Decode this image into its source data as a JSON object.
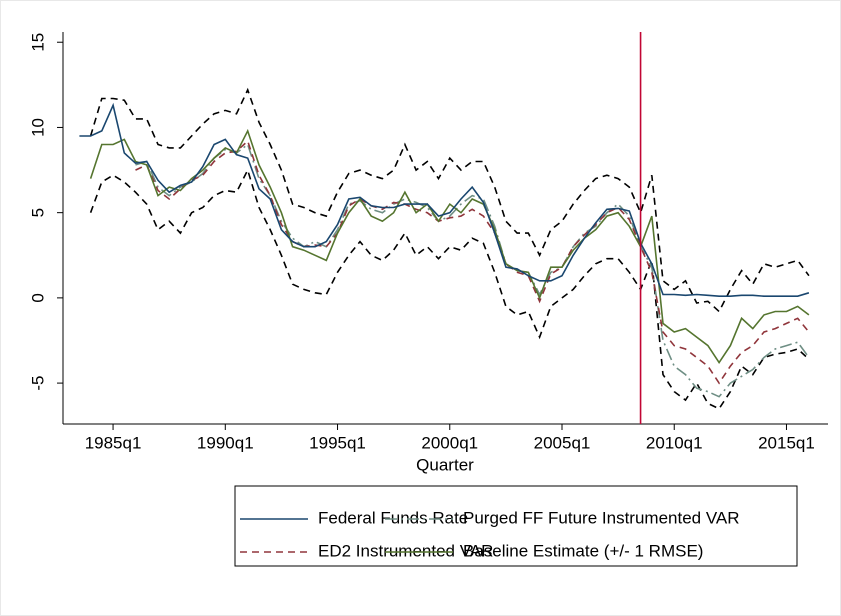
{
  "chart_data": {
    "type": "line",
    "xlabel": "Quarter",
    "x": [
      1983.5,
      1984,
      1984.5,
      1985,
      1985.5,
      1986,
      1986.5,
      1987,
      1987.5,
      1988,
      1988.5,
      1989,
      1989.5,
      1990,
      1990.5,
      1991,
      1991.5,
      1992,
      1992.5,
      1993,
      1993.5,
      1994,
      1994.5,
      1995,
      1995.5,
      1996,
      1996.5,
      1997,
      1997.5,
      1998,
      1998.5,
      1999,
      1999.5,
      2000,
      2000.5,
      2001,
      2001.5,
      2002,
      2002.5,
      2003,
      2003.5,
      2004,
      2004.5,
      2005,
      2005.5,
      2006,
      2006.5,
      2007,
      2007.5,
      2008,
      2008.5,
      2009,
      2009.5,
      2010,
      2010.5,
      2011,
      2011.5,
      2012,
      2012.5,
      2013,
      2013.5,
      2014,
      2014.5,
      2015,
      2015.5,
      2016
    ],
    "xlim": [
      1982.77,
      2016.85
    ],
    "xticks": [
      {
        "value": 1985,
        "label": "1985q1"
      },
      {
        "value": 1990,
        "label": "1990q1"
      },
      {
        "value": 1995,
        "label": "1995q1"
      },
      {
        "value": 2000,
        "label": "2000q1"
      },
      {
        "value": 2005,
        "label": "2005q1"
      },
      {
        "value": 2010,
        "label": "2010q1"
      },
      {
        "value": 2015,
        "label": "2015q1"
      }
    ],
    "ylim": [
      -7.4,
      15.6
    ],
    "yticks": [
      -5,
      0,
      5,
      10,
      15
    ],
    "vline": {
      "x": 2008.5,
      "color": "#c10534"
    },
    "series": [
      {
        "name": "Federal Funds Rate",
        "color": "#1a476f",
        "style": "solid",
        "values": [
          9.5,
          9.5,
          9.8,
          11.3,
          8.5,
          7.9,
          8.0,
          6.9,
          6.2,
          6.6,
          6.8,
          7.7,
          9.0,
          9.3,
          8.4,
          8.2,
          6.4,
          5.8,
          4.0,
          3.3,
          3.0,
          3.0,
          3.3,
          4.3,
          5.8,
          5.9,
          5.4,
          5.3,
          5.3,
          5.5,
          5.5,
          5.5,
          4.8,
          5.0,
          5.8,
          6.5,
          5.6,
          3.8,
          1.8,
          1.7,
          1.3,
          1.0,
          1.0,
          1.3,
          2.5,
          3.5,
          4.4,
          5.2,
          5.25,
          5.1,
          3.2,
          2.0,
          0.2,
          0.2,
          0.15,
          0.2,
          0.15,
          0.1,
          0.1,
          0.15,
          0.15,
          0.1,
          0.1,
          0.1,
          0.1,
          0.3
        ]
      },
      {
        "name": "Purged FF Future Instrumented VAR",
        "color": "#6e8e84",
        "style": "dashdot",
        "values": [
          null,
          null,
          null,
          null,
          null,
          7.8,
          8.0,
          6.5,
          6.0,
          6.5,
          6.8,
          7.3,
          8.2,
          8.7,
          8.5,
          9.0,
          7.0,
          6.0,
          4.5,
          3.5,
          3.0,
          3.3,
          3.0,
          4.0,
          5.5,
          5.7,
          5.2,
          5.0,
          5.5,
          5.8,
          5.6,
          5.3,
          4.5,
          4.8,
          5.5,
          6.0,
          5.8,
          4.2,
          2.0,
          1.6,
          1.5,
          0.2,
          1.5,
          1.8,
          3.0,
          3.8,
          4.2,
          5.0,
          5.5,
          4.8,
          3.0,
          1.8,
          -2.5,
          -4.0,
          -4.5,
          -5.3,
          -5.5,
          -5.8,
          -5.0,
          -4.6,
          -4.2,
          -3.5,
          -3.0,
          -2.8,
          -2.6,
          -3.5
        ]
      },
      {
        "name": "ED2 Instrumented VAR",
        "color": "#90353b",
        "style": "dash",
        "values": [
          null,
          null,
          null,
          null,
          null,
          7.5,
          7.8,
          6.3,
          5.8,
          6.4,
          6.9,
          7.2,
          8.0,
          8.5,
          8.6,
          9.2,
          7.2,
          6.0,
          4.3,
          3.3,
          3.0,
          3.1,
          3.0,
          3.8,
          5.4,
          5.8,
          5.4,
          5.2,
          5.6,
          5.5,
          5.2,
          5.0,
          4.5,
          4.7,
          4.8,
          5.2,
          4.8,
          3.8,
          2.0,
          1.5,
          1.3,
          -0.2,
          1.4,
          1.8,
          3.0,
          3.7,
          4.3,
          5.0,
          5.3,
          4.6,
          3.0,
          1.5,
          -2.0,
          -2.8,
          -3.0,
          -3.5,
          -4.0,
          -5.0,
          -4.0,
          -3.2,
          -2.8,
          -2.0,
          -1.8,
          -1.5,
          -1.2,
          -2.0
        ]
      },
      {
        "name": "Baseline Estimate (+/- 1 RMSE)",
        "color": "#55752f",
        "style": "solid",
        "values": [
          null,
          7.0,
          9.0,
          9.0,
          9.3,
          8.0,
          7.8,
          6.0,
          6.5,
          6.3,
          7.0,
          7.5,
          8.2,
          8.8,
          8.5,
          9.8,
          7.8,
          6.5,
          5.0,
          3.0,
          2.8,
          2.5,
          2.2,
          3.8,
          5.0,
          5.8,
          4.8,
          4.5,
          5.0,
          6.2,
          5.0,
          5.5,
          4.5,
          5.5,
          5.0,
          5.8,
          5.5,
          4.0,
          2.0,
          1.6,
          1.5,
          0.0,
          1.8,
          1.8,
          2.8,
          3.5,
          4.0,
          4.8,
          5.0,
          4.2,
          3.0,
          4.8,
          -1.5,
          -2.0,
          -1.8,
          -2.3,
          -2.8,
          -3.8,
          -2.8,
          -1.2,
          -1.8,
          -1.0,
          -0.8,
          -0.8,
          -0.5,
          -1.0
        ]
      },
      {
        "color": "#000000",
        "style": "dash",
        "values": [
          null,
          9.5,
          11.7,
          11.7,
          11.6,
          10.5,
          10.5,
          9.0,
          8.8,
          8.8,
          9.5,
          10.2,
          10.8,
          11.0,
          10.8,
          12.2,
          10.3,
          9.0,
          7.5,
          5.5,
          5.3,
          5.0,
          4.8,
          6.2,
          7.3,
          7.5,
          7.2,
          7.0,
          7.5,
          9.0,
          7.5,
          8.0,
          7.0,
          8.2,
          7.5,
          8.0,
          8.0,
          6.5,
          4.5,
          3.8,
          3.8,
          2.5,
          4.0,
          4.5,
          5.5,
          6.3,
          7.0,
          7.2,
          7.0,
          6.5,
          5.0,
          7.2,
          1.0,
          0.5,
          1.0,
          -0.3,
          -0.2,
          -0.8,
          0.5,
          1.6,
          0.8,
          2.0,
          1.8,
          2.0,
          2.2,
          1.3
        ]
      },
      {
        "color": "#000000",
        "style": "dash",
        "values": [
          null,
          5.0,
          6.8,
          7.2,
          6.8,
          6.2,
          5.5,
          4.0,
          4.5,
          3.8,
          5.0,
          5.3,
          6.0,
          6.3,
          6.2,
          7.5,
          5.3,
          4.0,
          2.5,
          0.8,
          0.5,
          0.3,
          0.2,
          1.5,
          2.5,
          3.3,
          2.5,
          2.2,
          2.8,
          3.8,
          2.5,
          3.0,
          2.3,
          3.0,
          2.8,
          3.5,
          3.2,
          1.5,
          -0.5,
          -1.0,
          -0.8,
          -2.3,
          -0.5,
          0.0,
          0.5,
          1.3,
          2.0,
          2.3,
          2.3,
          1.5,
          0.5,
          2.2,
          -4.5,
          -5.5,
          -6.0,
          -5.0,
          -6.2,
          -6.5,
          -5.5,
          -4.0,
          -4.5,
          -3.5,
          -3.3,
          -3.2,
          -3.0,
          -3.6
        ]
      }
    ]
  }
}
